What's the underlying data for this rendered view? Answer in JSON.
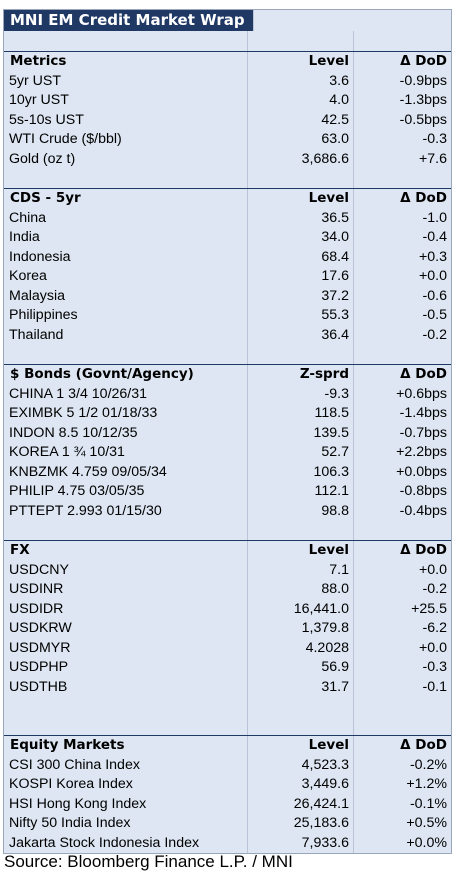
{
  "title": "MNI EM Credit Market Wrap",
  "sections": [
    {
      "header": [
        "Metrics",
        "Level",
        "Δ DoD"
      ],
      "rows": [
        [
          "5yr UST",
          "3.6",
          "-0.9bps"
        ],
        [
          "10yr UST",
          "4.0",
          "-1.3bps"
        ],
        [
          "5s-10s UST",
          "42.5",
          "-0.5bps"
        ],
        [
          "WTI Crude ($/bbl)",
          "63.0",
          "-0.3"
        ],
        [
          "Gold (oz t)",
          "3,686.6",
          "+7.6"
        ]
      ]
    },
    {
      "header": [
        "CDS - 5yr",
        "Level",
        "Δ DoD"
      ],
      "rows": [
        [
          "China",
          "36.5",
          "-1.0"
        ],
        [
          "India",
          "34.0",
          "-0.4"
        ],
        [
          "Indonesia",
          "68.4",
          "+0.3"
        ],
        [
          "Korea",
          "17.6",
          "+0.0"
        ],
        [
          "Malaysia",
          "37.2",
          "-0.6"
        ],
        [
          "Philippines",
          "55.3",
          "-0.5"
        ],
        [
          "Thailand",
          "36.4",
          "-0.2"
        ]
      ]
    },
    {
      "header": [
        "$ Bonds (Govnt/Agency)",
        "Z-sprd",
        "Δ DoD"
      ],
      "rows": [
        [
          "CHINA 1 3/4 10/26/31",
          "-9.3",
          "+0.6bps"
        ],
        [
          "EXIMBK 5 1/2 01/18/33",
          "118.5",
          "-1.4bps"
        ],
        [
          "INDON 8.5 10/12/35",
          "139.5",
          "-0.7bps"
        ],
        [
          "KOREA 1 ¾ 10/31",
          "52.7",
          "+2.2bps"
        ],
        [
          "KNBZMK 4.759 09/05/34",
          "106.3",
          "+0.0bps"
        ],
        [
          "PHILIP 4.75 03/05/35",
          "112.1",
          "-0.8bps"
        ],
        [
          "PTTEPT 2.993 01/15/30",
          "98.8",
          "-0.4bps"
        ]
      ]
    },
    {
      "header": [
        "FX",
        "Level",
        "Δ DoD"
      ],
      "rows": [
        [
          "USDCNY",
          "7.1",
          "+0.0"
        ],
        [
          "USDINR",
          "88.0",
          "-0.2"
        ],
        [
          "USDIDR",
          "16,441.0",
          "+25.5"
        ],
        [
          "USDKRW",
          "1,379.8",
          "-6.2"
        ],
        [
          "USDMYR",
          "4.2028",
          "+0.0"
        ],
        [
          "USDPHP",
          "56.9",
          "-0.3"
        ],
        [
          "USDTHB",
          "31.7",
          "-0.1"
        ]
      ]
    },
    {
      "header": [
        "Equity Markets",
        "Level",
        "Δ DoD"
      ],
      "rows": [
        [
          "CSI 300 China Index",
          "4,523.3",
          "-0.2%"
        ],
        [
          "KOSPI Korea Index",
          "3,449.6",
          "+1.2%"
        ],
        [
          "HSI Hong Kong Index",
          "26,424.1",
          "-0.1%"
        ],
        [
          "Nifty 50 India Index",
          "25,183.6",
          "+0.5%"
        ],
        [
          "Jakarta Stock Indonesia Index",
          "7,933.6",
          "+0.0%"
        ]
      ]
    }
  ],
  "source": "Source: Bloomberg Finance L.P. / MNI"
}
